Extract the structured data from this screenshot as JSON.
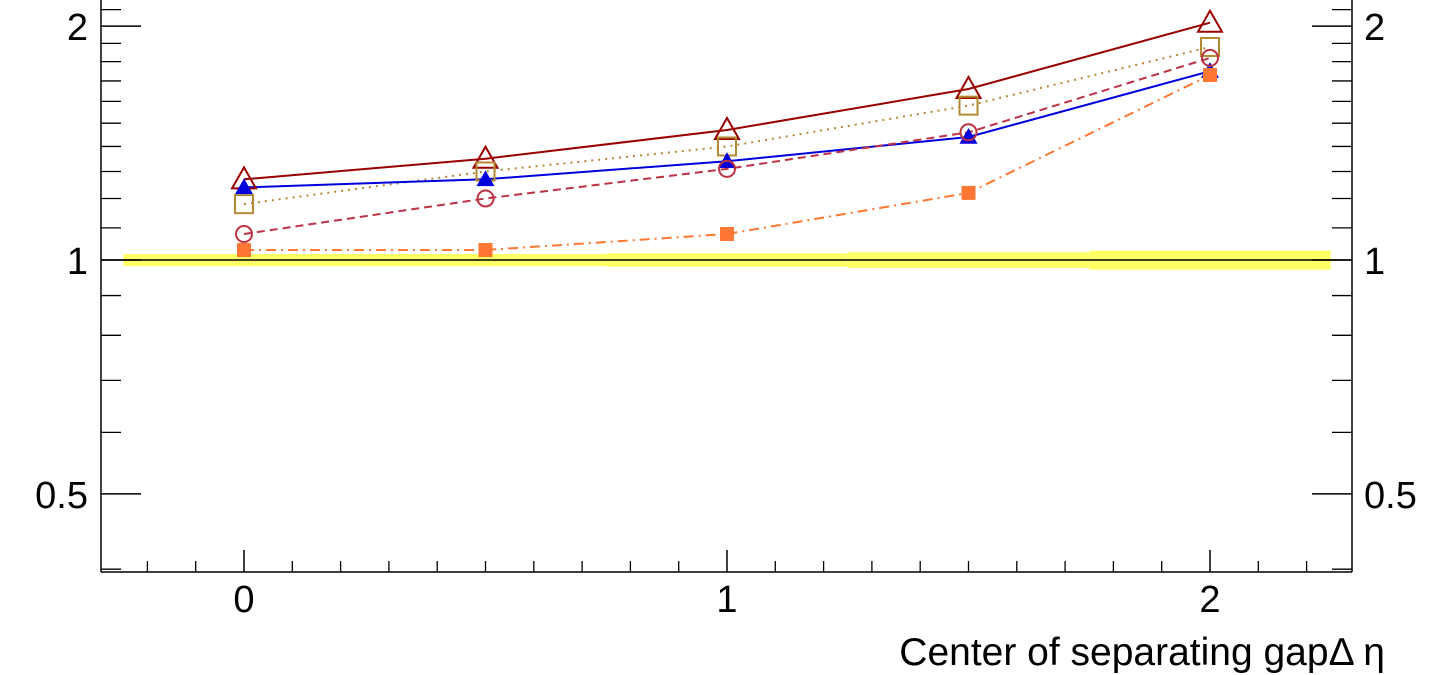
{
  "chart_data": {
    "type": "line",
    "title": "",
    "xlabel": "Center of separating gapΔ η",
    "ylabel": "",
    "log_y": true,
    "xlim": [
      -0.3,
      2.3
    ],
    "ylim": [
      0.4,
      2.1
    ],
    "x": [
      0,
      0.5,
      1,
      1.5,
      2
    ],
    "x_ticks": [
      {
        "value": 0,
        "label": "0"
      },
      {
        "value": 1,
        "label": "1"
      },
      {
        "value": 2,
        "label": "2"
      }
    ],
    "y_ticks": [
      {
        "value": 0.5,
        "label": "0.5"
      },
      {
        "value": 1,
        "label": "1"
      },
      {
        "value": 2,
        "label": "2"
      }
    ],
    "grid": false,
    "legend": "none",
    "reference_line": 1,
    "band": {
      "color": "#ffff66",
      "segments": [
        {
          "x0": -0.25,
          "x1": 0.25,
          "half_width": 0.018
        },
        {
          "x0": 0.25,
          "x1": 0.75,
          "half_width": 0.018
        },
        {
          "x0": 0.75,
          "x1": 1.25,
          "half_width": 0.02
        },
        {
          "x0": 1.25,
          "x1": 1.75,
          "half_width": 0.023
        },
        {
          "x0": 1.75,
          "x1": 2.25,
          "half_width": 0.028
        }
      ]
    },
    "series": [
      {
        "values": [
          1.27,
          1.35,
          1.47,
          1.66,
          2.02
        ],
        "color": "#990000",
        "marker": "triangle-open",
        "dash": "solid"
      },
      {
        "values": [
          1.18,
          1.3,
          1.4,
          1.58,
          1.88
        ],
        "color": "#b58833",
        "marker": "square-open",
        "dash": "dotted"
      },
      {
        "values": [
          1.24,
          1.27,
          1.34,
          1.44,
          1.75
        ],
        "color": "#0000dd",
        "marker": "triangle-filled",
        "dash": "solid"
      },
      {
        "values": [
          1.08,
          1.2,
          1.31,
          1.46,
          1.82
        ],
        "color": "#bb3344",
        "marker": "circle-open",
        "dash": "dashed"
      },
      {
        "values": [
          1.03,
          1.03,
          1.08,
          1.22,
          1.73
        ],
        "color": "#ff7733",
        "marker": "square-filled",
        "dash": "dashdot"
      }
    ]
  }
}
